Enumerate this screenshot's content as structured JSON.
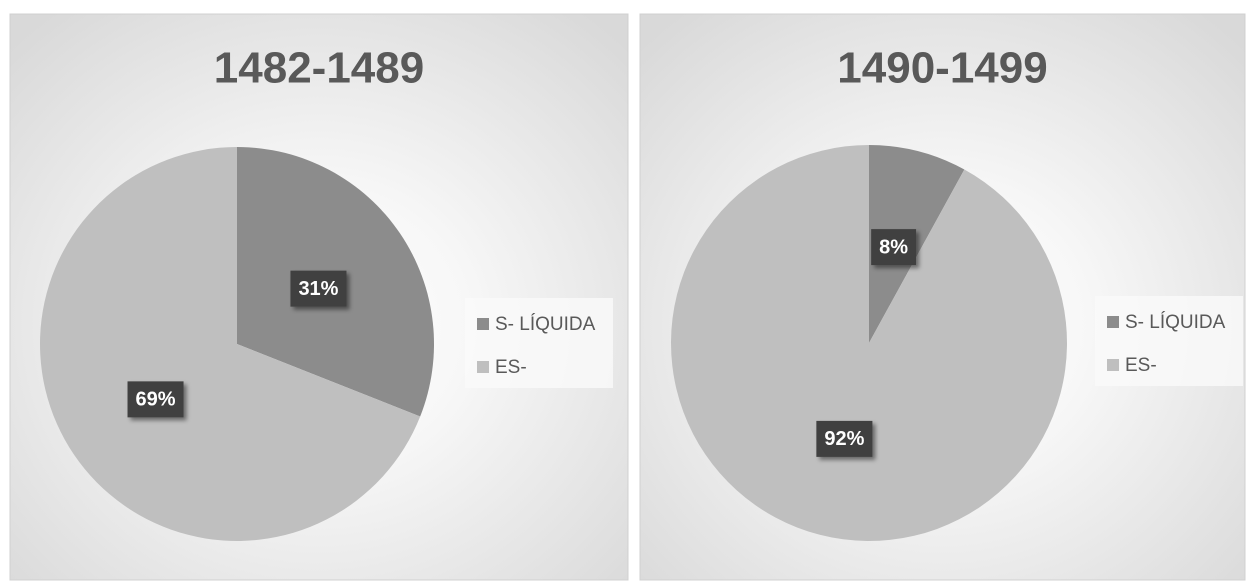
{
  "chart_data": [
    {
      "type": "pie",
      "title": "1482-1489",
      "categories": [
        "S- LÍQUIDA",
        "ES-"
      ],
      "values": [
        31,
        69
      ],
      "value_labels": [
        "31%",
        "69%"
      ],
      "colors": [
        "#8c8c8c",
        "#bfbfbf"
      ],
      "legend": "right"
    },
    {
      "type": "pie",
      "title": "1490-1499",
      "categories": [
        "S- LÍQUIDA",
        "ES-"
      ],
      "values": [
        8,
        92
      ],
      "value_labels": [
        "8%",
        "92%"
      ],
      "colors": [
        "#8c8c8c",
        "#bfbfbf"
      ],
      "legend": "right"
    }
  ]
}
